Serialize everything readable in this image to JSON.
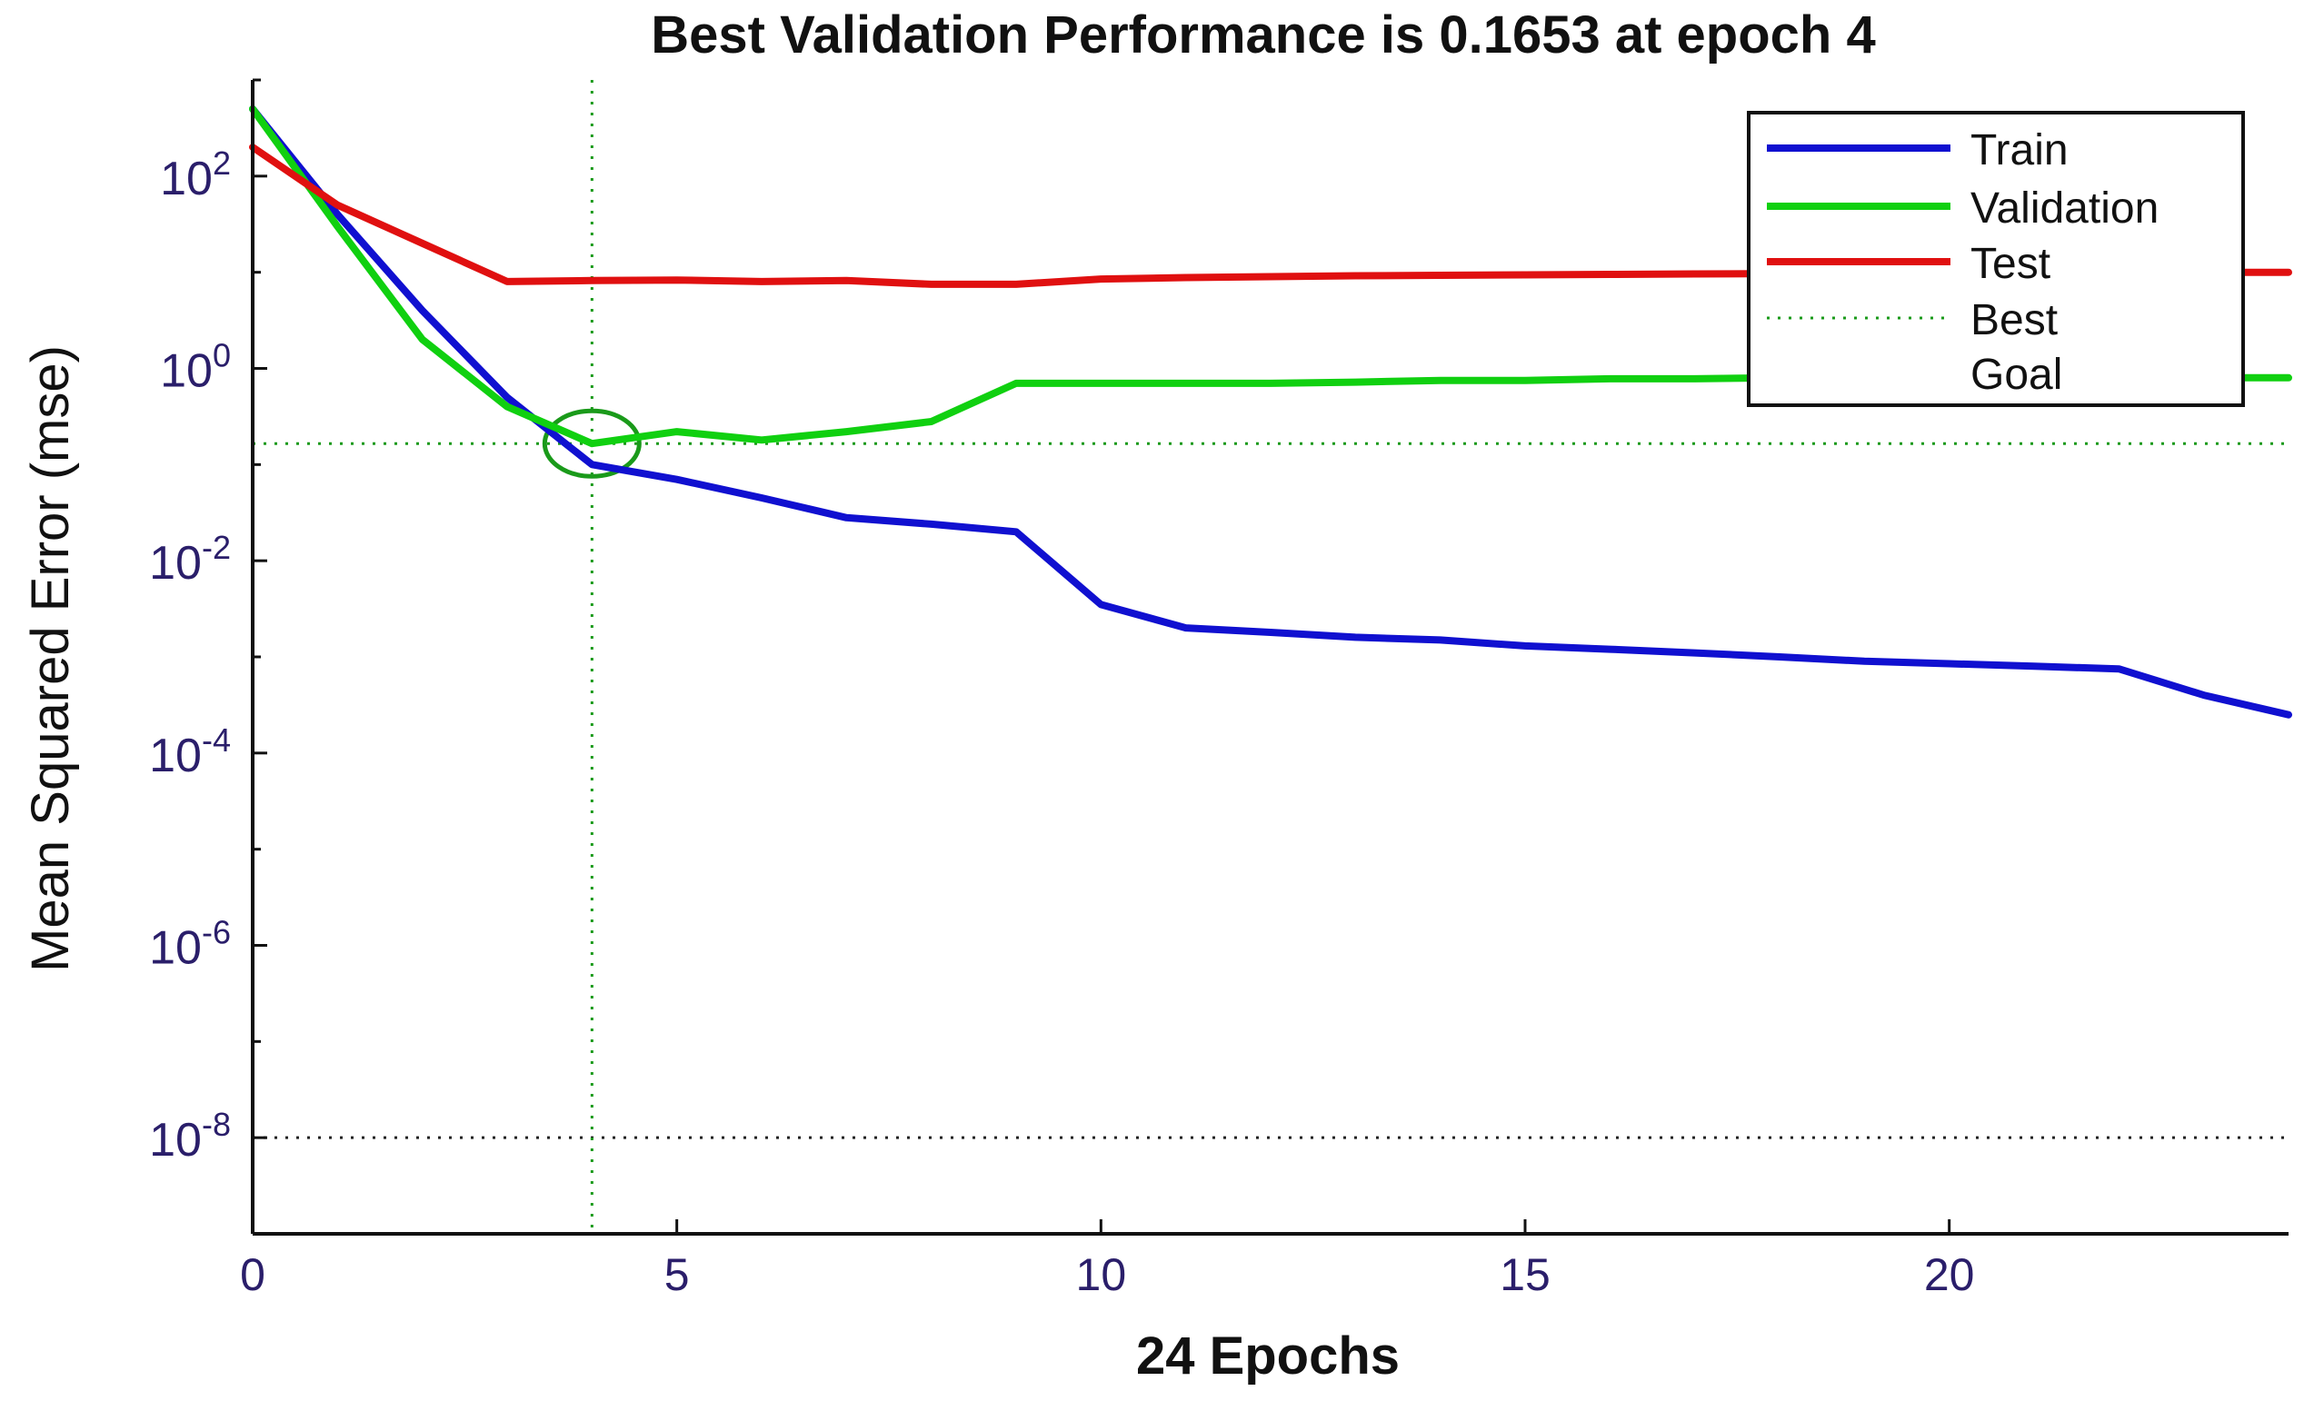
{
  "chart_data": {
    "type": "line",
    "title": "Best Validation Performance is 0.1653 at epoch 4",
    "xlabel": "24 Epochs",
    "ylabel": "Mean Squared Error  (mse)",
    "xlim": [
      0,
      24
    ],
    "ylim_log10": [
      -9,
      3
    ],
    "y_scale": "log",
    "x_ticks": [
      0,
      5,
      10,
      15,
      20
    ],
    "x_tick_labels": [
      "0",
      "5",
      "10",
      "15",
      "20"
    ],
    "y_ticks_log10": [
      2,
      0,
      -2,
      -4,
      -6,
      -8
    ],
    "y_tick_labels": [
      {
        "base": "10",
        "exp": "2"
      },
      {
        "base": "10",
        "exp": "0"
      },
      {
        "base": "10",
        "exp": "-2"
      },
      {
        "base": "10",
        "exp": "-4"
      },
      {
        "base": "10",
        "exp": "-6"
      },
      {
        "base": "10",
        "exp": "-8"
      }
    ],
    "x": [
      0,
      1,
      2,
      3,
      4,
      5,
      6,
      7,
      8,
      9,
      10,
      11,
      12,
      13,
      14,
      15,
      16,
      17,
      18,
      19,
      20,
      21,
      22,
      23,
      24
    ],
    "series": [
      {
        "name": "Train",
        "color": "#1010d0",
        "values": [
          500,
          40,
          4,
          0.5,
          0.1,
          0.07,
          0.045,
          0.028,
          0.024,
          0.02,
          0.0035,
          0.002,
          0.0018,
          0.0016,
          0.0015,
          0.0013,
          0.0012,
          0.0011,
          0.001,
          0.0009,
          0.00085,
          0.0008,
          0.00075,
          0.0004,
          0.00025
        ]
      },
      {
        "name": "Validation",
        "color": "#10d010",
        "values": [
          500,
          30,
          2,
          0.4,
          0.1653,
          0.22,
          0.18,
          0.22,
          0.28,
          0.7,
          0.7,
          0.7,
          0.7,
          0.72,
          0.75,
          0.75,
          0.78,
          0.78,
          0.8,
          0.8,
          0.8,
          0.8,
          0.8,
          0.8,
          0.8
        ]
      },
      {
        "name": "Test",
        "color": "#e01010",
        "values": [
          200,
          50,
          20,
          8,
          8.2,
          8.3,
          8,
          8.2,
          7.5,
          7.5,
          8.5,
          8.8,
          9,
          9.2,
          9.3,
          9.4,
          9.5,
          9.6,
          9.7,
          9.8,
          9.9,
          10,
          10,
          10,
          10
        ]
      }
    ],
    "best": {
      "label": "Best",
      "epoch": 4,
      "value": 0.1653,
      "color": "#1a9a1a"
    },
    "goal": {
      "label": "Goal",
      "value": 1e-08,
      "color": "#222222"
    },
    "legend_entries": [
      "Train",
      "Validation",
      "Test",
      "Best",
      "Goal"
    ],
    "legend_position": "top-right",
    "grid": false
  }
}
